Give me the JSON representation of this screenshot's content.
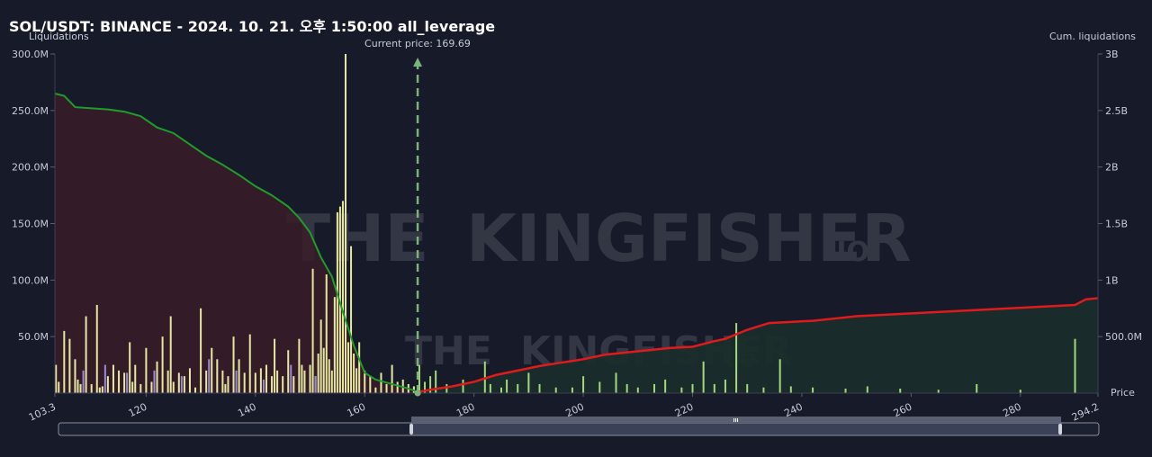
{
  "title": "SOL/USDT: BINANCE - 2024. 10. 21. 오후 1:50:00 all_leverage",
  "watermark": {
    "text1": "THE",
    "text2": "KINGFISHER",
    "suffix": ".IO"
  },
  "current_price_label": "Current price: 169.69",
  "chart_data": {
    "type": "bar",
    "xlabel": "Price",
    "ylabel_left": "Liquidations",
    "ylabel_right": "Cum. liquidations",
    "xlim": [
      103.3,
      294.2
    ],
    "x_ticks": [
      103.3,
      120,
      140,
      160,
      180,
      200,
      220,
      240,
      260,
      280,
      294.2
    ],
    "x_tick_labels": [
      "103.3",
      "120",
      "140",
      "160",
      "180",
      "200",
      "220",
      "240",
      "260",
      "280",
      "294.2"
    ],
    "ylim_left": [
      0,
      300000000
    ],
    "y_ticks_left": [
      50000000,
      100000000,
      150000000,
      200000000,
      250000000,
      300000000
    ],
    "y_tick_labels_left": [
      "50.0M",
      "100.0M",
      "150.0M",
      "200.0M",
      "250.0M",
      "300.0M"
    ],
    "ylim_right": [
      0,
      3000000000
    ],
    "y_ticks_right": [
      500000000,
      1000000000,
      1500000000,
      2000000000,
      2500000000,
      3000000000
    ],
    "y_tick_labels_right": [
      "500.0M",
      "1B",
      "1.5B",
      "2B",
      "2.5B",
      "3B"
    ],
    "current_price": 169.69,
    "colors": {
      "long_bar": "#e6e8a0",
      "long_bar_alt": "#9b8ad8",
      "short_bar": "#a3d977",
      "cum_long_line": "#1f9d2a",
      "cum_long_fill": "#3a1c28",
      "cum_short_line": "#e01b1b",
      "cum_short_fill": "#1a2e2a",
      "current_price_line": "#7fb27a"
    },
    "cum_long": {
      "x": [
        103.3,
        105,
        107,
        110,
        113,
        116,
        119,
        122,
        125,
        128,
        131,
        134,
        137,
        140,
        143,
        146,
        148,
        150,
        152,
        154,
        156,
        158,
        160,
        162,
        165,
        168,
        169.7
      ],
      "y": [
        2650000000,
        2630000000,
        2530000000,
        2520000000,
        2510000000,
        2490000000,
        2450000000,
        2350000000,
        2300000000,
        2200000000,
        2100000000,
        2020000000,
        1930000000,
        1830000000,
        1750000000,
        1650000000,
        1550000000,
        1420000000,
        1200000000,
        1030000000,
        720000000,
        420000000,
        180000000,
        120000000,
        80000000,
        40000000,
        10000000
      ]
    },
    "cum_short": {
      "x": [
        169.7,
        172,
        176,
        180,
        184,
        188,
        192,
        196,
        200,
        204,
        208,
        212,
        216,
        220,
        224,
        226,
        228,
        230,
        234,
        238,
        242,
        246,
        250,
        254,
        258,
        262,
        266,
        270,
        274,
        278,
        282,
        286,
        290,
        292,
        294.2
      ],
      "y": [
        10000000,
        30000000,
        60000000,
        100000000,
        160000000,
        200000000,
        240000000,
        270000000,
        300000000,
        340000000,
        360000000,
        380000000,
        400000000,
        410000000,
        460000000,
        480000000,
        520000000,
        560000000,
        620000000,
        630000000,
        640000000,
        660000000,
        680000000,
        690000000,
        700000000,
        710000000,
        720000000,
        730000000,
        740000000,
        750000000,
        760000000,
        770000000,
        780000000,
        830000000,
        840000000
      ]
    },
    "long_bars": {
      "x": [
        103.5,
        104,
        105,
        106,
        107,
        107.5,
        108,
        109,
        110,
        111,
        111.5,
        112,
        113,
        114,
        115,
        116,
        117,
        117.5,
        118,
        119,
        120,
        121,
        122,
        123,
        124,
        124.5,
        125,
        126,
        127,
        128,
        129,
        130,
        131,
        132,
        133,
        134,
        134.5,
        135,
        136,
        137,
        138,
        139,
        140,
        141,
        142,
        143,
        143.5,
        144,
        145,
        146,
        147,
        148,
        148.5,
        149,
        150,
        150.5,
        151,
        151.5,
        152,
        152.5,
        153,
        153.5,
        154,
        154.5,
        155,
        155.5,
        156,
        156.5,
        157,
        157.5,
        158,
        158.5,
        159,
        160,
        161,
        162,
        163,
        164,
        165,
        166,
        167,
        168,
        169
      ],
      "y": [
        25000000,
        10000000,
        55000000,
        48000000,
        30000000,
        12000000,
        8000000,
        68000000,
        8000000,
        78000000,
        5000000,
        6000000,
        15000000,
        25000000,
        20000000,
        18000000,
        45000000,
        10000000,
        25000000,
        8000000,
        40000000,
        10000000,
        28000000,
        50000000,
        20000000,
        68000000,
        10000000,
        18000000,
        15000000,
        22000000,
        5000000,
        75000000,
        20000000,
        40000000,
        30000000,
        20000000,
        8000000,
        15000000,
        50000000,
        30000000,
        18000000,
        52000000,
        18000000,
        22000000,
        25000000,
        15000000,
        48000000,
        20000000,
        15000000,
        38000000,
        15000000,
        48000000,
        25000000,
        20000000,
        25000000,
        110000000,
        15000000,
        35000000,
        65000000,
        40000000,
        105000000,
        30000000,
        20000000,
        85000000,
        160000000,
        165000000,
        170000000,
        300000000,
        45000000,
        130000000,
        35000000,
        22000000,
        45000000,
        20000000,
        15000000,
        5000000,
        18000000,
        8000000,
        25000000,
        10000000,
        12000000,
        8000000,
        6000000
      ]
    },
    "long_alt_bars": {
      "x": [
        108.5,
        112.5,
        116.5,
        121.5,
        126.5,
        131.5,
        136.5,
        141.5,
        146.5,
        151
      ],
      "y": [
        20000000,
        25000000,
        18000000,
        20000000,
        15000000,
        30000000,
        20000000,
        12000000,
        25000000,
        15000000
      ]
    },
    "short_bars": {
      "x": [
        170,
        171,
        172,
        173,
        175,
        178,
        182,
        183,
        185,
        186,
        188,
        190,
        192,
        195,
        198,
        200,
        203,
        206,
        208,
        210,
        213,
        215,
        218,
        220,
        222,
        224,
        226,
        228,
        230,
        233,
        236,
        238,
        242,
        248,
        252,
        258,
        265,
        272,
        280,
        290
      ],
      "y": [
        25000000,
        10000000,
        15000000,
        20000000,
        8000000,
        12000000,
        28000000,
        8000000,
        5000000,
        12000000,
        8000000,
        18000000,
        8000000,
        5000000,
        5000000,
        15000000,
        10000000,
        18000000,
        8000000,
        5000000,
        8000000,
        12000000,
        5000000,
        8000000,
        28000000,
        8000000,
        12000000,
        62000000,
        8000000,
        5000000,
        30000000,
        6000000,
        5000000,
        4000000,
        6000000,
        4000000,
        3000000,
        8000000,
        3000000,
        48000000
      ]
    }
  }
}
